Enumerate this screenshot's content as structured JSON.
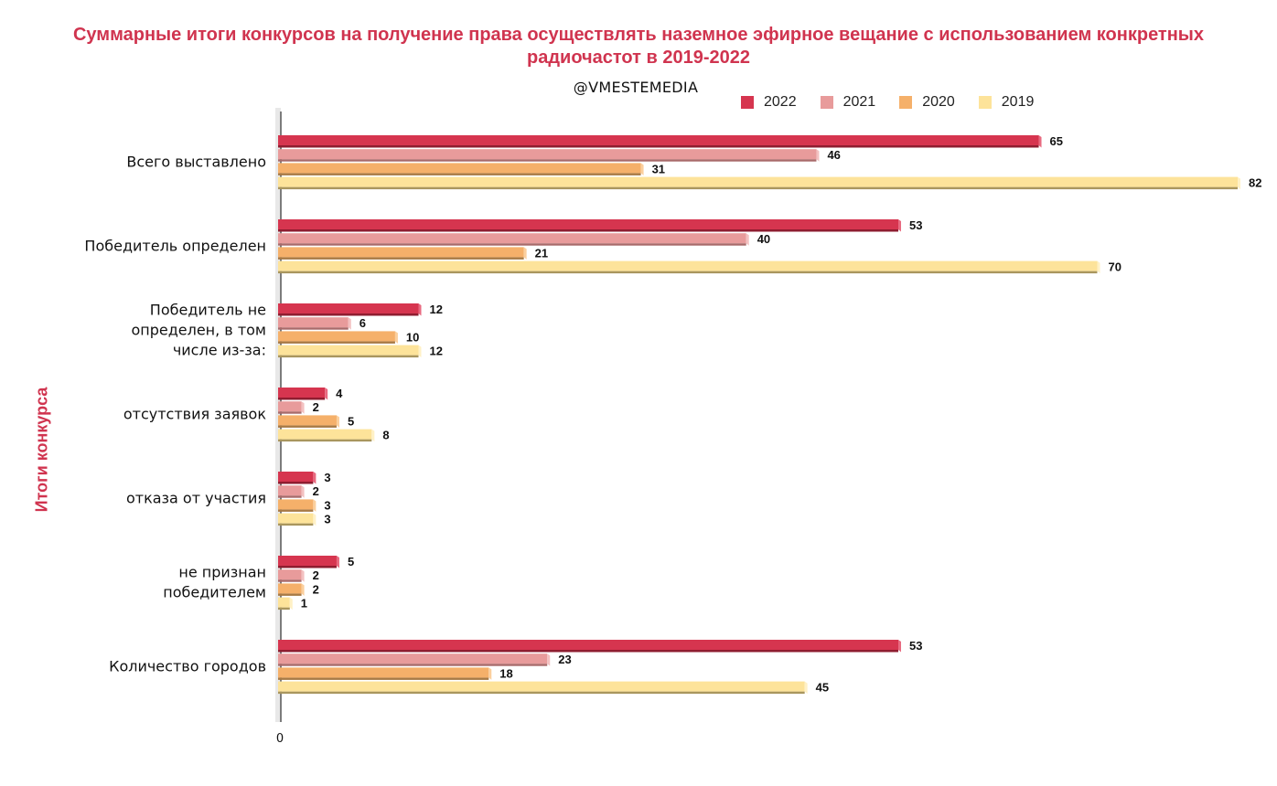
{
  "header": {
    "title": "Суммарные итоги конкурсов на получение права осуществлять наземное эфирное вещание с использованием конкретных радиочастот в 2019-2022",
    "subtitle": "@VMESTEMEDIA"
  },
  "colors": {
    "title": "#d0344f",
    "2022": "#d6354f",
    "2021": "#e89b9b",
    "2020": "#f5b06a",
    "2019": "#fde39a"
  },
  "chart_data": {
    "type": "bar",
    "orientation": "horizontal",
    "title": "Суммарные итоги конкурсов на получение права осуществлять наземное эфирное вещание с использованием конкретных радиочастот в 2019-2022",
    "subtitle": "@VMESTEMEDIA",
    "ylabel": "Итоги конкурса",
    "xlabel": "",
    "x_ticks": [
      "0"
    ],
    "xlim": [
      0,
      82
    ],
    "legend_position": "top-right",
    "grid": false,
    "categories": [
      [
        "Всего выставлено"
      ],
      [
        "Победитель определен"
      ],
      [
        "Победитель не",
        "определен,  в том",
        "числе из-за:"
      ],
      [
        "отсутствия заявок"
      ],
      [
        "отказа от участия"
      ],
      [
        "не признан",
        "победителем"
      ],
      [
        "Количество городов"
      ]
    ],
    "series": [
      {
        "name": "2022",
        "values": [
          65,
          53,
          12,
          4,
          3,
          5,
          53
        ]
      },
      {
        "name": "2021",
        "values": [
          46,
          40,
          6,
          2,
          2,
          2,
          23
        ]
      },
      {
        "name": "2020",
        "values": [
          31,
          21,
          10,
          5,
          3,
          2,
          18
        ]
      },
      {
        "name": "2019",
        "values": [
          82,
          70,
          12,
          8,
          3,
          1,
          45
        ]
      }
    ]
  }
}
